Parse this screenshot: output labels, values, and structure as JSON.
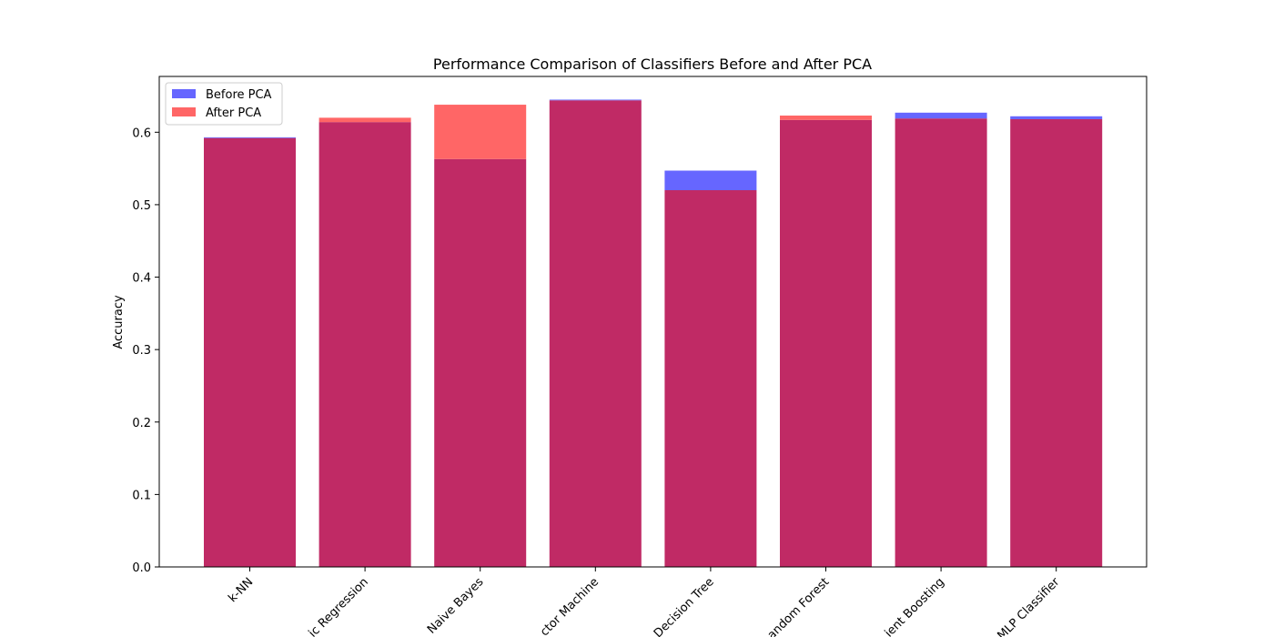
{
  "chart_data": {
    "type": "bar",
    "title": "Performance Comparison of Classifiers Before and After PCA",
    "xlabel": "",
    "ylabel": "Accuracy",
    "categories": [
      "k-NN",
      "ic Regression",
      "Naive Bayes",
      "ctor Machine",
      "Decision Tree",
      "andom Forest",
      "ient Boosting",
      "MLP Classifier"
    ],
    "series": [
      {
        "name": "Before PCA",
        "color": "#6666ff",
        "values": [
          0.593,
          0.614,
          0.563,
          0.645,
          0.547,
          0.617,
          0.627,
          0.622
        ]
      },
      {
        "name": "After PCA",
        "color": "#ff6666",
        "values": [
          0.592,
          0.62,
          0.638,
          0.644,
          0.52,
          0.623,
          0.619,
          0.618
        ]
      }
    ],
    "overlap_color": "#c02a65",
    "yticks": [
      "0.0",
      "0.1",
      "0.2",
      "0.3",
      "0.4",
      "0.5",
      "0.6"
    ],
    "ylim": [
      0,
      0.677
    ],
    "grid": false,
    "legend_position": "top-left"
  }
}
